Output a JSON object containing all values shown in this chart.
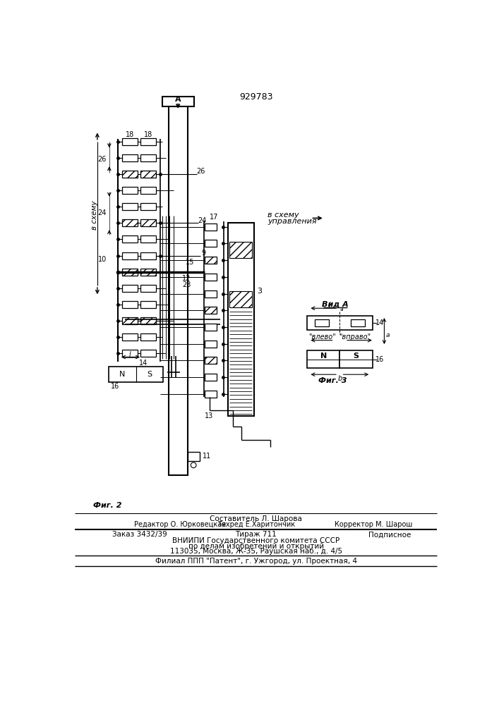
{
  "patent_number": "929783",
  "bg_color": "#ffffff",
  "line_color": "#000000",
  "fig2_label": "Фиг. 2",
  "fig3_label": "Фиг. 3",
  "vid_a_label": "Вид A",
  "footer_line1": "Составитель Л. Шарова",
  "footer_line2a": "Редактор О. Юрковецкая",
  "footer_line2b": "Техред Е.Харитончик",
  "footer_line2c": "Корректор М. Шарош",
  "footer_zakaz": "Заказ 3432/39",
  "footer_tirazh": "Тираж 711",
  "footer_podp": "Подписное",
  "footer_vniip1": "ВНИИПИ Государственного комитета СССР",
  "footer_vniip2": "по делам изобретений и открытий",
  "footer_vniip3": "113035, Москва, Ж-35, Раушская наб., д. 4/5",
  "footer_filial": "Филиал ППП \"Патент\", г. Ужгород, ул. Проектная, 4"
}
